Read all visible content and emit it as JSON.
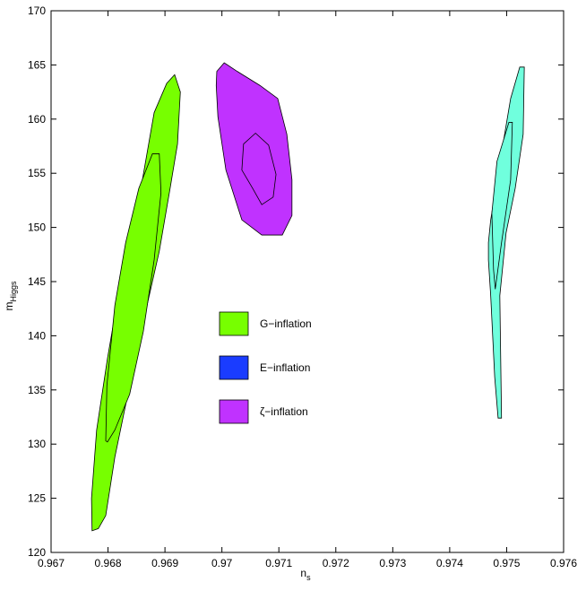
{
  "chart_data": {
    "type": "contour",
    "xlabel": "n",
    "xlabel_sub": "s",
    "ylabel": "m",
    "ylabel_sub": "Higgs",
    "xlim": [
      0.967,
      0.976
    ],
    "xticks": [
      0.967,
      0.968,
      0.969,
      0.97,
      0.971,
      0.972,
      0.973,
      0.974,
      0.975,
      0.976
    ],
    "ylim": [
      120,
      170
    ],
    "yticks": [
      120,
      125,
      130,
      135,
      140,
      145,
      150,
      155,
      160,
      165,
      170
    ],
    "legend": [
      {
        "name": "G−inflation",
        "color": "#77ff00"
      },
      {
        "name": "E−inflation",
        "color": "#1a3cff"
      },
      {
        "name": "ζ−inflation",
        "color": "#c032ff"
      }
    ],
    "regions": [
      {
        "color": "#77ff00",
        "outer": {
          "x": [
            0.96772,
            0.96771,
            0.9678,
            0.96799,
            0.96818,
            0.96838,
            0.96859,
            0.96881,
            0.96903,
            0.96917,
            0.96927,
            0.96922,
            0.96909,
            0.9689,
            0.96865,
            0.96838,
            0.96812,
            0.96796,
            0.96783
          ],
          "y": [
            122.0,
            125.0,
            131.3,
            137.9,
            143.7,
            149.1,
            154.0,
            160.6,
            163.3,
            164.1,
            162.5,
            157.7,
            153.6,
            147.8,
            142.0,
            135.4,
            128.8,
            123.4,
            122.2
          ]
        },
        "inner": {
          "x": [
            0.96796,
            0.96798,
            0.96812,
            0.96831,
            0.96854,
            0.96878,
            0.9689,
            0.96893,
            0.96881,
            0.96862,
            0.96838,
            0.96812,
            0.96799
          ],
          "y": [
            130.3,
            135.4,
            142.8,
            148.6,
            153.6,
            156.8,
            156.8,
            153.2,
            147.0,
            140.4,
            134.6,
            131.3,
            130.2
          ]
        }
      },
      {
        "color": "#c032ff",
        "outer": {
          "x": [
            0.96991,
            0.97004,
            0.97027,
            0.97067,
            0.97098,
            0.97114,
            0.97123,
            0.97123,
            0.97106,
            0.9707,
            0.97035,
            0.97007,
            0.96993,
            0.9699
          ],
          "y": [
            164.4,
            165.2,
            164.4,
            163.1,
            161.9,
            158.6,
            154.4,
            151.1,
            149.3,
            149.3,
            150.7,
            155.3,
            160.2,
            163.1
          ]
        },
        "inner": {
          "x": [
            0.97038,
            0.97059,
            0.97082,
            0.97095,
            0.9709,
            0.9707,
            0.97054,
            0.97035
          ],
          "y": [
            157.7,
            158.7,
            157.6,
            154.9,
            152.8,
            152.1,
            153.6,
            155.3
          ]
        }
      },
      {
        "color": "#70ffdd",
        "outer": {
          "x": [
            0.97468,
            0.97472,
            0.97491,
            0.97507,
            0.97523,
            0.97531,
            0.97529,
            0.97515,
            0.97499,
            0.97488,
            0.97491,
            0.97485,
            0.97479,
            0.97472,
            0.97468
          ],
          "y": [
            148.6,
            150.7,
            156.9,
            161.9,
            164.8,
            164.8,
            158.6,
            153.6,
            149.5,
            143.7,
            132.4,
            132.4,
            136.2,
            143.7,
            147.0
          ]
        },
        "inner": {
          "x": [
            0.97474,
            0.97483,
            0.97504,
            0.9751,
            0.97507,
            0.97491,
            0.9748,
            0.97477
          ],
          "y": [
            151.3,
            156.1,
            159.7,
            159.7,
            154.4,
            148.6,
            144.3,
            146.1
          ]
        }
      }
    ]
  }
}
